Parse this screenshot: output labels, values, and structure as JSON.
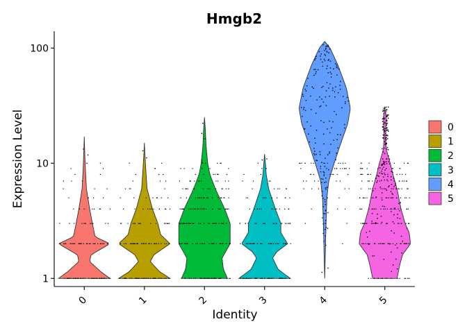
{
  "chart_data": {
    "type": "violin",
    "title": "Hmgb2",
    "xlabel": "Identity",
    "ylabel": "Expression Level",
    "y_scale": "log10",
    "ylim": [
      0.85,
      140
    ],
    "y_ticks": [
      {
        "value": 1,
        "label": "1"
      },
      {
        "value": 10,
        "label": "10"
      },
      {
        "value": 100,
        "label": "100"
      }
    ],
    "categories": [
      "0",
      "1",
      "2",
      "3",
      "4",
      "5"
    ],
    "x_tick_rotation": 45,
    "legend": {
      "position": "right"
    },
    "series": [
      {
        "name": "0",
        "color": "#F8766D",
        "min": 1,
        "max": 17,
        "profile": [
          [
            1,
            0.95
          ],
          [
            1.15,
            0.6
          ],
          [
            1.4,
            0.2
          ],
          [
            1.6,
            0.25
          ],
          [
            2,
            0.95
          ],
          [
            2.3,
            0.4
          ],
          [
            3,
            0.3
          ],
          [
            4,
            0.2
          ],
          [
            6,
            0.08
          ],
          [
            9,
            0.04
          ],
          [
            12,
            0.02
          ],
          [
            17,
            0.0
          ]
        ]
      },
      {
        "name": "1",
        "color": "#B79F00",
        "min": 1,
        "max": 15,
        "profile": [
          [
            1,
            0.95
          ],
          [
            1.15,
            0.55
          ],
          [
            1.4,
            0.22
          ],
          [
            1.6,
            0.35
          ],
          [
            2,
            0.95
          ],
          [
            2.4,
            0.6
          ],
          [
            3,
            0.5
          ],
          [
            4,
            0.3
          ],
          [
            6,
            0.1
          ],
          [
            9,
            0.05
          ],
          [
            12,
            0.02
          ],
          [
            15,
            0.0
          ]
        ]
      },
      {
        "name": "2",
        "color": "#00BA38",
        "min": 1,
        "max": 25,
        "profile": [
          [
            1,
            0.85
          ],
          [
            1.2,
            0.7
          ],
          [
            1.5,
            0.65
          ],
          [
            2,
            0.95
          ],
          [
            3,
            0.95
          ],
          [
            4,
            0.75
          ],
          [
            6,
            0.4
          ],
          [
            8,
            0.2
          ],
          [
            10,
            0.12
          ],
          [
            14,
            0.06
          ],
          [
            20,
            0.03
          ],
          [
            25,
            0.0
          ]
        ]
      },
      {
        "name": "3",
        "color": "#00BFC4",
        "min": 1,
        "max": 12,
        "profile": [
          [
            1,
            0.95
          ],
          [
            1.2,
            0.5
          ],
          [
            1.5,
            0.3
          ],
          [
            1.7,
            0.45
          ],
          [
            2,
            0.85
          ],
          [
            2.5,
            0.6
          ],
          [
            3,
            0.6
          ],
          [
            4,
            0.4
          ],
          [
            6,
            0.15
          ],
          [
            8,
            0.06
          ],
          [
            10,
            0.03
          ],
          [
            12,
            0.0
          ]
        ]
      },
      {
        "name": "4",
        "color": "#619CFF",
        "min": 1,
        "max": 114,
        "profile": [
          [
            1,
            0.0
          ],
          [
            1.5,
            0.02
          ],
          [
            2,
            0.03
          ],
          [
            3,
            0.05
          ],
          [
            5,
            0.08
          ],
          [
            7,
            0.15
          ],
          [
            10,
            0.35
          ],
          [
            15,
            0.6
          ],
          [
            22,
            0.85
          ],
          [
            30,
            0.95
          ],
          [
            45,
            0.8
          ],
          [
            70,
            0.5
          ],
          [
            100,
            0.2
          ],
          [
            114,
            0.0
          ]
        ]
      },
      {
        "name": "5",
        "color": "#F564E3",
        "min": 1,
        "max": 31,
        "profile": [
          [
            1,
            0.45
          ],
          [
            1.3,
            0.55
          ],
          [
            1.6,
            0.65
          ],
          [
            2,
            0.95
          ],
          [
            2.5,
            0.9
          ],
          [
            3,
            0.75
          ],
          [
            4,
            0.6
          ],
          [
            6,
            0.45
          ],
          [
            8,
            0.3
          ],
          [
            10,
            0.2
          ],
          [
            13,
            0.06
          ],
          [
            16,
            0.03
          ],
          [
            20,
            0.04
          ],
          [
            25,
            0.05
          ],
          [
            31,
            0.0
          ]
        ]
      }
    ]
  }
}
